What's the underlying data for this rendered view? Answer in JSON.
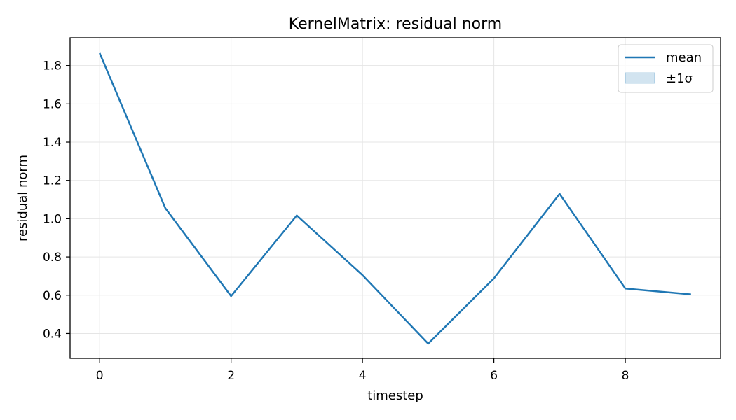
{
  "chart_data": {
    "type": "line",
    "title": "KernelMatrix: residual norm",
    "xlabel": "timestep",
    "ylabel": "residual norm",
    "x": [
      0,
      1,
      2,
      3,
      4,
      5,
      6,
      7,
      8,
      9
    ],
    "series": [
      {
        "name": "mean",
        "values": [
          1.865,
          1.055,
          0.595,
          1.017,
          0.705,
          0.347,
          0.688,
          1.13,
          0.635,
          0.604
        ],
        "band_name": "±1σ"
      }
    ],
    "xlim": [
      -0.45,
      9.45
    ],
    "ylim": [
      0.27,
      1.945
    ],
    "xticks": [
      0,
      2,
      4,
      6,
      8
    ],
    "yticks": [
      0.4,
      0.6,
      0.8,
      1.0,
      1.2,
      1.4,
      1.6,
      1.8
    ],
    "grid": true,
    "legend_position": "top-right",
    "colors": {
      "line": "#1f77b4",
      "band": "#1f77b4",
      "grid": "#e5e5e5",
      "axes": "#000000"
    }
  }
}
